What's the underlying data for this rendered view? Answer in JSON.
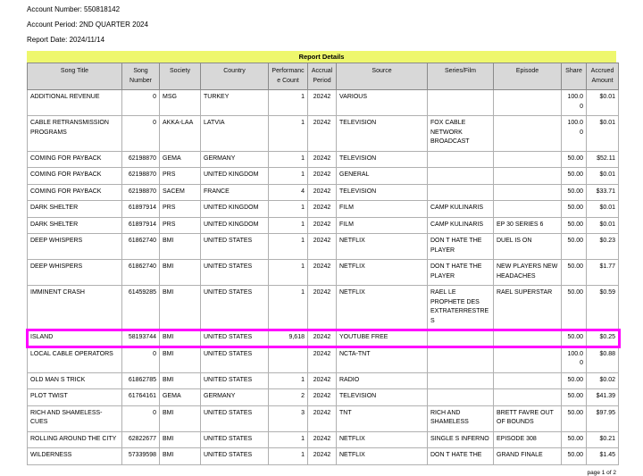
{
  "header": {
    "account_number_line": "Account Number: 550818142",
    "account_period_line": "Account Period: 2ND QUARTER 2024",
    "report_date_line": "Report Date: 2024/11/14"
  },
  "report_bar": {
    "title": "Report Details"
  },
  "table": {
    "columns": [
      "Song Title",
      "Song Number",
      "Society",
      "Country",
      "Performance Count",
      "Accrual Period",
      "Source",
      "Series/Film",
      "Episode",
      "Share",
      "Accrued Amount"
    ],
    "rows": [
      {
        "title": "ADDITIONAL REVENUE",
        "song_number": "0",
        "society": "MSG",
        "country": "TURKEY",
        "performance_count": "1",
        "accrual_period": "20242",
        "source": "VARIOUS",
        "series_film": "",
        "episode": "",
        "share": "100.00",
        "accrued_amount": "$0.01"
      },
      {
        "title": "CABLE RETRANSMISSION PROGRAMS",
        "song_number": "0",
        "society": "AKKA-LAA",
        "country": "LATVIA",
        "performance_count": "1",
        "accrual_period": "20242",
        "source": "TELEVISION",
        "series_film": "FOX CABLE NETWORK BROADCAST",
        "episode": "",
        "share": "100.00",
        "accrued_amount": "$0.01"
      },
      {
        "title": "COMING FOR PAYBACK",
        "song_number": "62198870",
        "society": "GEMA",
        "country": "GERMANY",
        "performance_count": "1",
        "accrual_period": "20242",
        "source": "TELEVISION",
        "series_film": "",
        "episode": "",
        "share": "50.00",
        "accrued_amount": "$52.11"
      },
      {
        "title": "COMING FOR PAYBACK",
        "song_number": "62198870",
        "society": "PRS",
        "country": "UNITED KINGDOM",
        "performance_count": "1",
        "accrual_period": "20242",
        "source": "GENERAL",
        "series_film": "",
        "episode": "",
        "share": "50.00",
        "accrued_amount": "$0.01"
      },
      {
        "title": "COMING FOR PAYBACK",
        "song_number": "62198870",
        "society": "SACEM",
        "country": "FRANCE",
        "performance_count": "4",
        "accrual_period": "20242",
        "source": "TELEVISION",
        "series_film": "",
        "episode": "",
        "share": "50.00",
        "accrued_amount": "$33.71"
      },
      {
        "title": "DARK SHELTER",
        "song_number": "61897914",
        "society": "PRS",
        "country": "UNITED KINGDOM",
        "performance_count": "1",
        "accrual_period": "20242",
        "source": "FILM",
        "series_film": "CAMP KULINARIS",
        "episode": "",
        "share": "50.00",
        "accrued_amount": "$0.01"
      },
      {
        "title": "DARK SHELTER",
        "song_number": "61897914",
        "society": "PRS",
        "country": "UNITED KINGDOM",
        "performance_count": "1",
        "accrual_period": "20242",
        "source": "FILM",
        "series_film": "CAMP KULINARIS",
        "episode": "EP 30 SERIES 6",
        "share": "50.00",
        "accrued_amount": "$0.01"
      },
      {
        "title": "DEEP WHISPERS",
        "song_number": "61862740",
        "society": "BMI",
        "country": "UNITED STATES",
        "performance_count": "1",
        "accrual_period": "20242",
        "source": "NETFLIX",
        "series_film": "DON T HATE THE PLAYER",
        "episode": "DUEL IS ON",
        "share": "50.00",
        "accrued_amount": "$0.23"
      },
      {
        "title": "DEEP WHISPERS",
        "song_number": "61862740",
        "society": "BMI",
        "country": "UNITED STATES",
        "performance_count": "1",
        "accrual_period": "20242",
        "source": "NETFLIX",
        "series_film": "DON T HATE THE PLAYER",
        "episode": "NEW PLAYERS NEW HEADACHES",
        "share": "50.00",
        "accrued_amount": "$1.77"
      },
      {
        "title": "IMMINENT CRASH",
        "song_number": "61459285",
        "society": "BMI",
        "country": "UNITED STATES",
        "performance_count": "1",
        "accrual_period": "20242",
        "source": "NETFLIX",
        "series_film": "RAEL LE PROPHETE DES EXTRATERRESTRES",
        "episode": "RAEL SUPERSTAR",
        "share": "50.00",
        "accrued_amount": "$0.59"
      },
      {
        "title": "ISLAND",
        "song_number": "58193744",
        "society": "BMI",
        "country": "UNITED STATES",
        "performance_count": "9,618",
        "accrual_period": "20242",
        "source": "YOUTUBE FREE",
        "series_film": "",
        "episode": "",
        "share": "50.00",
        "accrued_amount": "$0.25",
        "highlighted": true
      },
      {
        "title": "LOCAL CABLE OPERATORS",
        "song_number": "0",
        "society": "BMI",
        "country": "UNITED STATES",
        "performance_count": "",
        "accrual_period": "20242",
        "source": "NCTA-TNT",
        "series_film": "",
        "episode": "",
        "share": "100.00",
        "accrued_amount": "$0.88"
      },
      {
        "title": "OLD MAN S TRICK",
        "song_number": "61862785",
        "society": "BMI",
        "country": "UNITED STATES",
        "performance_count": "1",
        "accrual_period": "20242",
        "source": "RADIO",
        "series_film": "",
        "episode": "",
        "share": "50.00",
        "accrued_amount": "$0.02"
      },
      {
        "title": "PLOT TWIST",
        "song_number": "61764161",
        "society": "GEMA",
        "country": "GERMANY",
        "performance_count": "2",
        "accrual_period": "20242",
        "source": "TELEVISION",
        "series_film": "",
        "episode": "",
        "share": "50.00",
        "accrued_amount": "$41.39"
      },
      {
        "title": "RICH AND SHAMELESS-CUES",
        "song_number": "0",
        "society": "BMI",
        "country": "UNITED STATES",
        "performance_count": "3",
        "accrual_period": "20242",
        "source": "TNT",
        "series_film": "RICH AND SHAMELESS",
        "episode": "BRETT FAVRE OUT OF BOUNDS",
        "share": "50.00",
        "accrued_amount": "$97.95"
      },
      {
        "title": "ROLLING AROUND THE CITY",
        "song_number": "62822677",
        "society": "BMI",
        "country": "UNITED STATES",
        "performance_count": "1",
        "accrual_period": "20242",
        "source": "NETFLIX",
        "series_film": "SINGLE S INFERNO",
        "episode": "EPISODE 308",
        "share": "50.00",
        "accrued_amount": "$0.21"
      },
      {
        "title": "WILDERNESS",
        "song_number": "57339598",
        "society": "BMI",
        "country": "UNITED STATES",
        "performance_count": "1",
        "accrual_period": "20242",
        "source": "NETFLIX",
        "series_film": "DON T HATE THE",
        "episode": "GRAND FINALE",
        "share": "50.00",
        "accrued_amount": "$1.45"
      }
    ]
  },
  "footer": {
    "page_label": "page 1 of 2"
  },
  "colors": {
    "report_bar_bg": "#eef76d",
    "table_header_bg": "#d8d8d8",
    "highlight_border": "#ff00ff"
  }
}
